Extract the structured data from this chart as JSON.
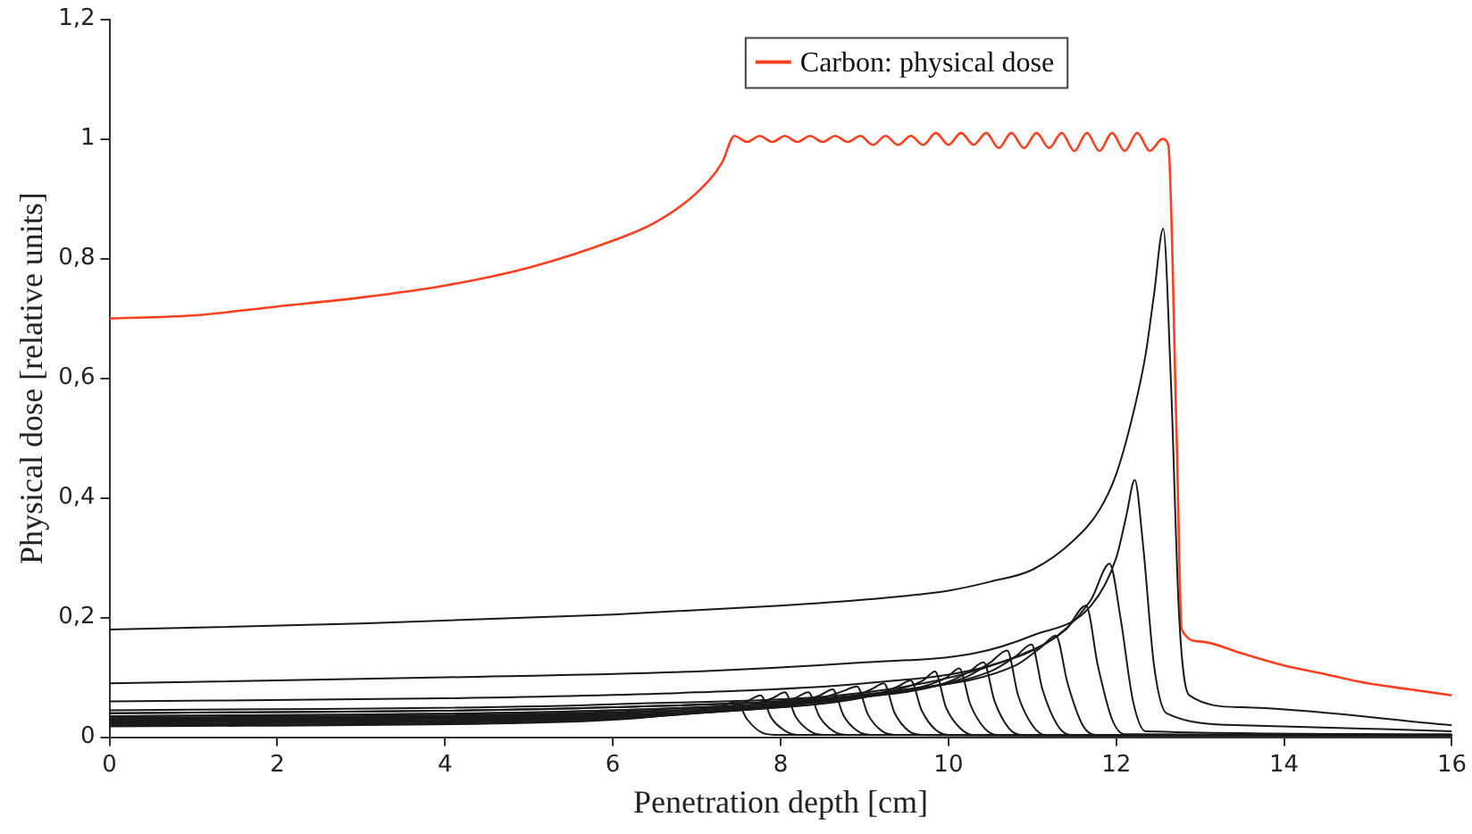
{
  "chart_data": {
    "type": "line",
    "xlabel": "Penetration depth [cm]",
    "ylabel": "Physical dose [relative units]",
    "xlim": [
      0,
      16
    ],
    "xticks": [
      0,
      2,
      4,
      6,
      8,
      10,
      12,
      14,
      16
    ],
    "ylim": [
      0,
      1.2
    ],
    "yticks": [
      0,
      {
        "value": 0.2,
        "label": "0,2"
      },
      {
        "value": 0.4,
        "label": "0,4"
      },
      {
        "value": 0.6,
        "label": "0,6"
      },
      {
        "value": 0.8,
        "label": "0,8"
      },
      1,
      {
        "value": 1.2,
        "label": "1,2"
      }
    ],
    "grid": false,
    "legend": "top",
    "marker": "none",
    "line_style": "solid",
    "series": [
      {
        "name": "Carbon: physical dose",
        "color": "#ff4020",
        "x": [
          0,
          1,
          2,
          3,
          4,
          5,
          6,
          6.5,
          7,
          7.3,
          7.45,
          7.6,
          7.75,
          7.9,
          8.05,
          8.2,
          8.35,
          8.5,
          8.65,
          8.8,
          8.95,
          9.1,
          9.25,
          9.4,
          9.55,
          9.7,
          9.85,
          10,
          10.15,
          10.3,
          10.45,
          10.6,
          10.75,
          10.9,
          11.05,
          11.2,
          11.35,
          11.5,
          11.65,
          11.8,
          11.95,
          12.1,
          12.25,
          12.4,
          12.55,
          12.62,
          12.72,
          12.78,
          13,
          13.5,
          14,
          14.5,
          15,
          15.5,
          16
        ],
        "values": [
          0.7,
          0.705,
          0.72,
          0.735,
          0.755,
          0.785,
          0.83,
          0.86,
          0.91,
          0.96,
          1.005,
          0.995,
          1.005,
          0.995,
          1.005,
          0.995,
          1.005,
          0.995,
          1.005,
          0.995,
          1.005,
          0.99,
          1.005,
          0.99,
          1.005,
          0.99,
          1.01,
          0.99,
          1.01,
          0.99,
          1.01,
          0.985,
          1.01,
          0.985,
          1.01,
          0.985,
          1.01,
          0.98,
          1.01,
          0.98,
          1.01,
          0.98,
          1.01,
          0.98,
          1.0,
          0.99,
          0.5,
          0.18,
          0.16,
          0.14,
          0.12,
          0.105,
          0.09,
          0.08,
          0.07
        ]
      },
      {
        "color": "#1a1a1a",
        "x": [
          0,
          3,
          6,
          8,
          9,
          10,
          10.5,
          11,
          11.5,
          11.8,
          12,
          12.2,
          12.35,
          12.45,
          12.56,
          12.65,
          12.75,
          12.87,
          13.5,
          16
        ],
        "values": [
          0.18,
          0.19,
          0.205,
          0.22,
          0.23,
          0.245,
          0.26,
          0.28,
          0.33,
          0.38,
          0.44,
          0.54,
          0.64,
          0.74,
          0.85,
          0.6,
          0.2,
          0.07,
          0.05,
          0.02
        ]
      },
      {
        "color": "#1a1a1a",
        "x": [
          0,
          4,
          7,
          9,
          10.3,
          11,
          11.7,
          12,
          12.12,
          12.22,
          12.32,
          12.45,
          12.6,
          13.5,
          16
        ],
        "values": [
          0.09,
          0.1,
          0.11,
          0.125,
          0.14,
          0.17,
          0.22,
          0.3,
          0.37,
          0.43,
          0.32,
          0.12,
          0.04,
          0.02,
          0.01
        ]
      },
      {
        "color": "#1a1a1a",
        "x": [
          0,
          4,
          7,
          9,
          10.5,
          11.3,
          11.7,
          11.92,
          12.05,
          12.2,
          12.35,
          16
        ],
        "values": [
          0.06,
          0.065,
          0.075,
          0.09,
          0.12,
          0.17,
          0.23,
          0.29,
          0.2,
          0.06,
          0.01,
          0.005
        ]
      },
      {
        "color": "#1a1a1a",
        "x": [
          0,
          6,
          9.5,
          10.9,
          11.4,
          11.64,
          11.78,
          11.95,
          12.1,
          16
        ],
        "values": [
          0.045,
          0.055,
          0.085,
          0.14,
          0.18,
          0.22,
          0.12,
          0.03,
          0.005,
          0.003
        ]
      },
      {
        "color": "#1a1a1a",
        "x": [
          0,
          6,
          9.5,
          10.8,
          11.1,
          11.28,
          11.42,
          11.6,
          11.75,
          16
        ],
        "values": [
          0.04,
          0.05,
          0.08,
          0.12,
          0.15,
          0.17,
          0.09,
          0.02,
          0.004,
          0.003
        ]
      },
      {
        "color": "#1a1a1a",
        "x": [
          0,
          6,
          9.3,
          10.5,
          10.8,
          10.99,
          11.12,
          11.3,
          11.45,
          16
        ],
        "values": [
          0.04,
          0.05,
          0.075,
          0.11,
          0.135,
          0.155,
          0.08,
          0.02,
          0.004,
          0.003
        ]
      },
      {
        "color": "#1a1a1a",
        "x": [
          0,
          6,
          9,
          10.2,
          10.5,
          10.7,
          10.83,
          11,
          11.15,
          16
        ],
        "values": [
          0.035,
          0.045,
          0.07,
          0.1,
          0.125,
          0.145,
          0.07,
          0.02,
          0.004,
          0.003
        ]
      },
      {
        "color": "#1a1a1a",
        "x": [
          0,
          6,
          8.8,
          9.95,
          10.25,
          10.42,
          10.55,
          10.72,
          10.87,
          16
        ],
        "values": [
          0.035,
          0.045,
          0.065,
          0.09,
          0.11,
          0.125,
          0.06,
          0.015,
          0.004,
          0.003
        ]
      },
      {
        "color": "#1a1a1a",
        "x": [
          0,
          6,
          8.5,
          9.7,
          9.98,
          10.13,
          10.26,
          10.43,
          10.58,
          16
        ],
        "values": [
          0.032,
          0.042,
          0.06,
          0.085,
          0.1,
          0.115,
          0.055,
          0.015,
          0.004,
          0.003
        ]
      },
      {
        "color": "#1a1a1a",
        "x": [
          0,
          6,
          8.2,
          9.4,
          9.7,
          9.84,
          9.97,
          10.14,
          10.29,
          16
        ],
        "values": [
          0.03,
          0.04,
          0.055,
          0.08,
          0.095,
          0.11,
          0.05,
          0.015,
          0.004,
          0.003
        ]
      },
      {
        "color": "#1a1a1a",
        "x": [
          0,
          6,
          8,
          9.1,
          9.4,
          9.55,
          9.68,
          9.85,
          10,
          16
        ],
        "values": [
          0.03,
          0.038,
          0.05,
          0.07,
          0.085,
          0.095,
          0.045,
          0.012,
          0.004,
          0.003
        ]
      },
      {
        "color": "#1a1a1a",
        "x": [
          0,
          6,
          7.8,
          8.8,
          9.08,
          9.23,
          9.36,
          9.53,
          9.68,
          16
        ],
        "values": [
          0.028,
          0.036,
          0.048,
          0.065,
          0.08,
          0.09,
          0.04,
          0.01,
          0.004,
          0.003
        ]
      },
      {
        "color": "#1a1a1a",
        "x": [
          0,
          5,
          7.5,
          8.5,
          8.76,
          8.91,
          9.04,
          9.21,
          9.36,
          16
        ],
        "values": [
          0.027,
          0.034,
          0.046,
          0.066,
          0.078,
          0.085,
          0.038,
          0.01,
          0.004,
          0.003
        ]
      },
      {
        "color": "#1a1a1a",
        "x": [
          0,
          5,
          7.3,
          8.2,
          8.47,
          8.62,
          8.75,
          8.92,
          9.07,
          16
        ],
        "values": [
          0.025,
          0.032,
          0.043,
          0.058,
          0.07,
          0.08,
          0.036,
          0.01,
          0.004,
          0.003
        ]
      },
      {
        "color": "#1a1a1a",
        "x": [
          0,
          5,
          7,
          7.9,
          8.18,
          8.33,
          8.46,
          8.63,
          8.78,
          16
        ],
        "values": [
          0.024,
          0.03,
          0.04,
          0.055,
          0.066,
          0.075,
          0.035,
          0.01,
          0.004,
          0.003
        ]
      },
      {
        "color": "#1a1a1a",
        "x": [
          0,
          5,
          6.8,
          7.6,
          7.9,
          8.05,
          8.18,
          8.35,
          8.5,
          16
        ],
        "values": [
          0.022,
          0.028,
          0.038,
          0.052,
          0.065,
          0.075,
          0.034,
          0.01,
          0.004,
          0.003
        ]
      },
      {
        "color": "#1a1a1a",
        "x": [
          0,
          5,
          6.5,
          7.3,
          7.6,
          7.76,
          7.89,
          8.06,
          8.21,
          16
        ],
        "values": [
          0.02,
          0.026,
          0.035,
          0.048,
          0.06,
          0.07,
          0.032,
          0.01,
          0.004,
          0.003
        ]
      },
      {
        "color": "#1a1a1a",
        "x": [
          0,
          5,
          6.3,
          7,
          7.32,
          7.47,
          7.6,
          7.77,
          7.92,
          16
        ],
        "values": [
          0.018,
          0.024,
          0.032,
          0.044,
          0.053,
          0.06,
          0.03,
          0.008,
          0.004,
          0.003
        ]
      }
    ]
  }
}
